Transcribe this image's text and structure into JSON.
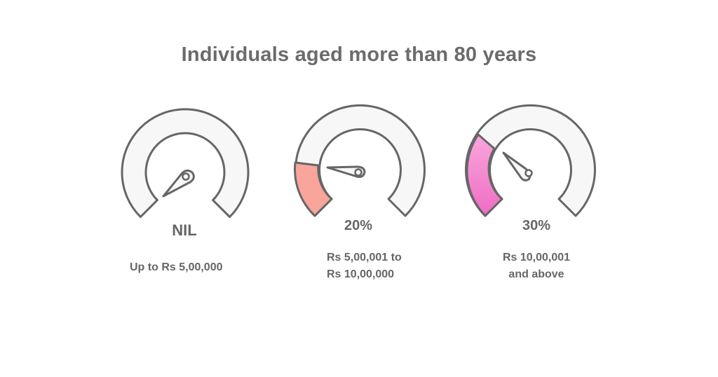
{
  "title": "Individuals aged more than 80 years",
  "slabs": [
    {
      "rate": "NIL",
      "range_lines": [
        "Up to Rs 5,00,000"
      ],
      "fill_color": null,
      "needle_angle_deg": 135
    },
    {
      "rate": "20%",
      "range_lines": [
        "Rs 5,00,001 to",
        "Rs 10,00,000"
      ],
      "fill_color": "#f9a59b",
      "needle_angle_deg": 189
    },
    {
      "rate": "30%",
      "range_lines": [
        "Rs 10,00,001",
        "and above"
      ],
      "fill_color": "#f47fcb",
      "needle_angle_deg": 215
    }
  ],
  "colors": {
    "gauge_track": "#f7f7f7",
    "gauge_stroke": "#666666",
    "text": "#666666"
  }
}
